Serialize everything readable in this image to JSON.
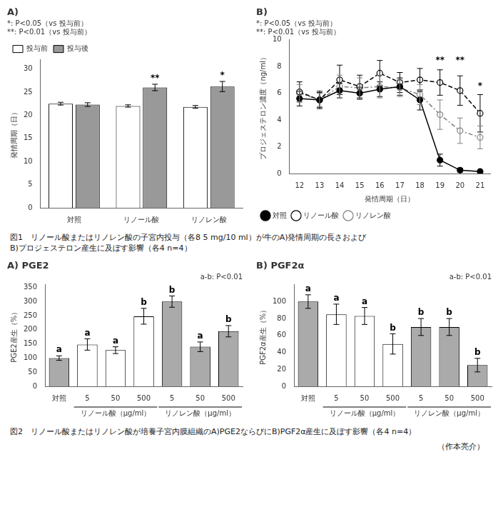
{
  "chart_data": [
    {
      "type": "bar",
      "title": "A)",
      "categories": [
        "対照",
        "リノール酸",
        "リノレン酸"
      ],
      "series": [
        {
          "name": "投与前",
          "color": "#ffffff",
          "values": [
            22.5,
            22.0,
            21.8
          ],
          "errors": [
            0.3,
            0.25,
            0.3
          ]
        },
        {
          "name": "投与後",
          "color": "#999999",
          "values": [
            22.3,
            26.0,
            26.2
          ],
          "errors": [
            0.4,
            0.7,
            1.1
          ],
          "sig_labels": [
            null,
            "**",
            "*"
          ]
        }
      ],
      "ylabel": "発情周期（日）",
      "ylim": [
        0,
        32
      ],
      "yticks": [
        0,
        5,
        10,
        15,
        20,
        25,
        30
      ],
      "grid": false,
      "legend": "upper left",
      "annotations": [
        "*: P<0.05（vs 投与前）",
        "**: P<0.01（vs 投与前）"
      ]
    },
    {
      "type": "line",
      "title": "B)",
      "x": [
        12,
        13,
        14,
        15,
        16,
        17,
        18,
        19,
        20,
        21
      ],
      "xlim": [
        11.5,
        21.5
      ],
      "xticks": [
        12,
        13,
        14,
        15,
        16,
        17,
        18,
        19,
        20,
        21
      ],
      "xlabel": "発情周期（日）",
      "ylabel": "プロジェステロン濃度（ng/ml）",
      "ylim": [
        0,
        10
      ],
      "yticks": [
        0,
        2,
        4,
        6,
        8,
        10
      ],
      "series": [
        {
          "name": "対照",
          "color": "#000000",
          "marker": "circle",
          "line_style": "solid",
          "values": [
            5.6,
            5.5,
            6.2,
            6.0,
            6.3,
            6.5,
            5.5,
            1.0,
            0.25,
            0.15
          ],
          "errors": [
            0.55,
            0.65,
            0.55,
            0.45,
            0.55,
            0.65,
            0.75,
            0.45,
            0.15,
            0.1
          ]
        },
        {
          "name": "リノール酸",
          "color": "#000000",
          "marker": "open_circle",
          "line_style": "dashed",
          "values": [
            6.1,
            5.5,
            7.0,
            6.5,
            7.5,
            6.8,
            7.0,
            6.8,
            6.2,
            4.5
          ],
          "errors": [
            0.75,
            0.55,
            1.1,
            0.85,
            0.95,
            0.75,
            0.85,
            0.95,
            1.1,
            1.4
          ]
        },
        {
          "name": "リノレン酸",
          "color": "#808080",
          "marker": "open_circle",
          "line_style": "dashdot",
          "values": [
            6.0,
            5.5,
            6.5,
            6.4,
            6.5,
            6.4,
            5.9,
            4.4,
            3.2,
            2.7
          ],
          "errors": [
            0.65,
            0.5,
            0.85,
            0.75,
            0.85,
            0.65,
            0.75,
            1.1,
            0.95,
            0.85
          ]
        }
      ],
      "grid": false,
      "legend": "lower left",
      "annotations": [
        "*: P<0.05（vs 投与前）",
        "**: P<0.01（vs 投与前）",
        {
          "text": "**",
          "x": 19,
          "y": 8.1
        },
        {
          "text": "**",
          "x": 20,
          "y": 8.1
        },
        {
          "text": "*",
          "x": 21,
          "y": 6.2
        }
      ]
    },
    {
      "type": "bar",
      "title": "A) PGE2",
      "categories": [
        "対照",
        "5",
        "50",
        "500",
        "5",
        "50",
        "500"
      ],
      "values": [
        100,
        148,
        128,
        248,
        300,
        140,
        195
      ],
      "errors": [
        8,
        20,
        12,
        28,
        20,
        17,
        20
      ],
      "colors": [
        "#aaaaaa",
        "#ffffff",
        "#ffffff",
        "#ffffff",
        "#aaaaaa",
        "#aaaaaa",
        "#aaaaaa"
      ],
      "sig_labels": [
        "a",
        "a",
        "a",
        "b",
        "b",
        "a",
        "b"
      ],
      "ylabel": "PGE2産生（%）",
      "ylim": [
        0,
        360
      ],
      "yticks": [
        0,
        50,
        100,
        150,
        200,
        250,
        300,
        350
      ],
      "grid": false,
      "annotations": [
        "a-b: P<0.01"
      ],
      "x_group_labels": [
        "リノール酸（μg/ml）",
        "リノレン酸（μg/ml）"
      ]
    },
    {
      "type": "bar",
      "title": "B) PGF2α",
      "categories": [
        "対照",
        "5",
        "50",
        "500",
        "5",
        "50",
        "500"
      ],
      "values": [
        100,
        85,
        83,
        50,
        70,
        70,
        25
      ],
      "errors": [
        8,
        12,
        10,
        12,
        10,
        10,
        8
      ],
      "colors": [
        "#aaaaaa",
        "#ffffff",
        "#ffffff",
        "#ffffff",
        "#aaaaaa",
        "#aaaaaa",
        "#aaaaaa"
      ],
      "sig_labels": [
        "a",
        "a",
        "a",
        "b",
        "b",
        "b",
        "b"
      ],
      "ylabel": "PGF2α産生（%）",
      "ylim": [
        0,
        120
      ],
      "yticks": [
        0,
        20,
        40,
        60,
        80,
        100
      ],
      "grid": false,
      "annotations": [
        "a-b: P<0.01"
      ],
      "x_group_labels": [
        "リノール酸（μg/ml）",
        "リノレン酸（μg/ml）"
      ]
    }
  ],
  "annotations": [
    [
      "図1　リノール酸またはリノレン酸の子宮内投与（各8 5 mg/10 ml）が牛のA)発情周期の長さおよび",
      "B)プロジェステロン産生に及ぼす影響（各4 n=4）"
    ],
    [
      "図2　リノール酸またはリノレン酸が培養子宮内膜組織のA)PGE2ならびにB)PGF2α産生に及ぼす影響（各4 n=4）"
    ],
    [
      "（作本亮介）"
    ]
  ]
}
